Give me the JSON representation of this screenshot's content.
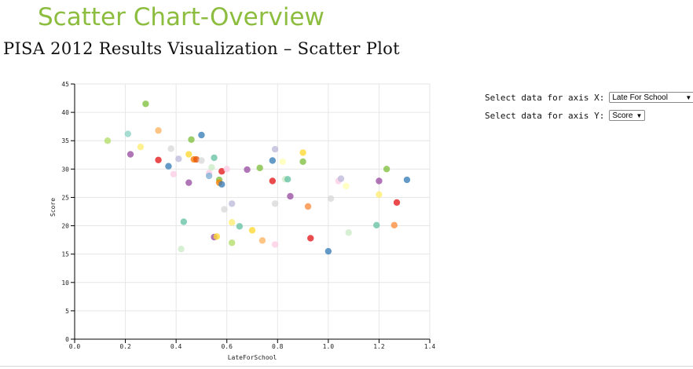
{
  "slide_title": "Scatter Chart-Overview",
  "page_heading": "PISA 2012 Results Visualization – Scatter Plot",
  "controls": {
    "x_label": "Select data for axis X:",
    "x_value": "Late For School",
    "y_label": "Select data for axis Y:",
    "y_value": "Score"
  },
  "chart_data": {
    "type": "scatter",
    "xlabel": "LateForSchool",
    "ylabel": "Score",
    "xlim": [
      0,
      1.4
    ],
    "ylim": [
      0,
      45
    ],
    "x_ticks": [
      0,
      0.2,
      0.4,
      0.6,
      0.8,
      1.0,
      1.2,
      1.4
    ],
    "x_tick_labels": [
      "0.0",
      "0.2",
      "0.4",
      "0.6",
      "0.8",
      "1.0",
      "1.2",
      "1.4"
    ],
    "y_ticks": [
      0,
      5,
      10,
      15,
      20,
      25,
      30,
      35,
      40,
      45
    ],
    "y_tick_labels": [
      "0",
      "5",
      "10",
      "15",
      "20",
      "25",
      "30",
      "35",
      "40",
      "45"
    ],
    "grid": true,
    "points": [
      {
        "x": 0.13,
        "y": 35.0,
        "color": "#b3de69"
      },
      {
        "x": 0.21,
        "y": 36.2,
        "color": "#8dd3c7"
      },
      {
        "x": 0.22,
        "y": 32.6,
        "color": "#984ea3"
      },
      {
        "x": 0.26,
        "y": 33.9,
        "color": "#ffed6f"
      },
      {
        "x": 0.28,
        "y": 41.5,
        "color": "#7fbf3f"
      },
      {
        "x": 0.33,
        "y": 36.8,
        "color": "#fdb462"
      },
      {
        "x": 0.33,
        "y": 31.6,
        "color": "#e41a1c"
      },
      {
        "x": 0.37,
        "y": 30.5,
        "color": "#377eb8"
      },
      {
        "x": 0.38,
        "y": 33.6,
        "color": "#d9d9d9"
      },
      {
        "x": 0.39,
        "y": 29.1,
        "color": "#fccde5"
      },
      {
        "x": 0.41,
        "y": 31.8,
        "color": "#bebada"
      },
      {
        "x": 0.42,
        "y": 15.9,
        "color": "#ccebc5"
      },
      {
        "x": 0.43,
        "y": 20.7,
        "color": "#66c2a5"
      },
      {
        "x": 0.45,
        "y": 27.6,
        "color": "#984ea3"
      },
      {
        "x": 0.45,
        "y": 32.6,
        "color": "#ffd92f"
      },
      {
        "x": 0.46,
        "y": 35.2,
        "color": "#7fbf3f"
      },
      {
        "x": 0.47,
        "y": 31.7,
        "color": "#ff7f00"
      },
      {
        "x": 0.48,
        "y": 31.7,
        "color": "#e6550d"
      },
      {
        "x": 0.5,
        "y": 31.5,
        "color": "#d9d9d9"
      },
      {
        "x": 0.5,
        "y": 36.0,
        "color": "#377eb8"
      },
      {
        "x": 0.53,
        "y": 29.3,
        "color": "#fccde5"
      },
      {
        "x": 0.53,
        "y": 28.8,
        "color": "#80b1d3"
      },
      {
        "x": 0.54,
        "y": 30.3,
        "color": "#ccebc5"
      },
      {
        "x": 0.55,
        "y": 32.0,
        "color": "#66c2a5"
      },
      {
        "x": 0.55,
        "y": 18.0,
        "color": "#984ea3"
      },
      {
        "x": 0.56,
        "y": 18.1,
        "color": "#ffd92f"
      },
      {
        "x": 0.57,
        "y": 28.1,
        "color": "#7fbf3f"
      },
      {
        "x": 0.57,
        "y": 27.6,
        "color": "#ff7f00"
      },
      {
        "x": 0.58,
        "y": 27.3,
        "color": "#377eb8"
      },
      {
        "x": 0.58,
        "y": 29.6,
        "color": "#e41a1c"
      },
      {
        "x": 0.59,
        "y": 22.9,
        "color": "#d9d9d9"
      },
      {
        "x": 0.6,
        "y": 30.0,
        "color": "#fccde5"
      },
      {
        "x": 0.62,
        "y": 23.9,
        "color": "#bebada"
      },
      {
        "x": 0.62,
        "y": 17.0,
        "color": "#b3de69"
      },
      {
        "x": 0.62,
        "y": 20.6,
        "color": "#ffed6f"
      },
      {
        "x": 0.65,
        "y": 19.9,
        "color": "#66c2a5"
      },
      {
        "x": 0.68,
        "y": 29.9,
        "color": "#984ea3"
      },
      {
        "x": 0.7,
        "y": 19.2,
        "color": "#ffd92f"
      },
      {
        "x": 0.73,
        "y": 30.2,
        "color": "#7fbf3f"
      },
      {
        "x": 0.74,
        "y": 17.4,
        "color": "#fdb462"
      },
      {
        "x": 0.78,
        "y": 31.5,
        "color": "#377eb8"
      },
      {
        "x": 0.78,
        "y": 27.9,
        "color": "#e41a1c"
      },
      {
        "x": 0.79,
        "y": 33.5,
        "color": "#bebada"
      },
      {
        "x": 0.79,
        "y": 23.9,
        "color": "#d9d9d9"
      },
      {
        "x": 0.79,
        "y": 16.7,
        "color": "#fccde5"
      },
      {
        "x": 0.82,
        "y": 31.3,
        "color": "#ffffb3"
      },
      {
        "x": 0.83,
        "y": 28.2,
        "color": "#ccebc5"
      },
      {
        "x": 0.84,
        "y": 28.2,
        "color": "#66c2a5"
      },
      {
        "x": 0.85,
        "y": 25.2,
        "color": "#984ea3"
      },
      {
        "x": 0.9,
        "y": 32.9,
        "color": "#ffd92f"
      },
      {
        "x": 0.9,
        "y": 31.3,
        "color": "#7fbf3f"
      },
      {
        "x": 0.92,
        "y": 23.4,
        "color": "#fd8d3c"
      },
      {
        "x": 0.93,
        "y": 17.8,
        "color": "#e41a1c"
      },
      {
        "x": 1.0,
        "y": 15.5,
        "color": "#377eb8"
      },
      {
        "x": 1.01,
        "y": 24.8,
        "color": "#d9d9d9"
      },
      {
        "x": 1.04,
        "y": 27.9,
        "color": "#fccde5"
      },
      {
        "x": 1.05,
        "y": 28.3,
        "color": "#bebada"
      },
      {
        "x": 1.07,
        "y": 27.0,
        "color": "#ffffb3"
      },
      {
        "x": 1.08,
        "y": 18.8,
        "color": "#ccebc5"
      },
      {
        "x": 1.19,
        "y": 20.1,
        "color": "#66c2a5"
      },
      {
        "x": 1.2,
        "y": 27.9,
        "color": "#984ea3"
      },
      {
        "x": 1.2,
        "y": 25.5,
        "color": "#ffed6f"
      },
      {
        "x": 1.23,
        "y": 30.0,
        "color": "#7fbf3f"
      },
      {
        "x": 1.26,
        "y": 20.1,
        "color": "#fd8d3c"
      },
      {
        "x": 1.27,
        "y": 24.1,
        "color": "#e41a1c"
      },
      {
        "x": 1.31,
        "y": 28.1,
        "color": "#377eb8"
      }
    ]
  }
}
